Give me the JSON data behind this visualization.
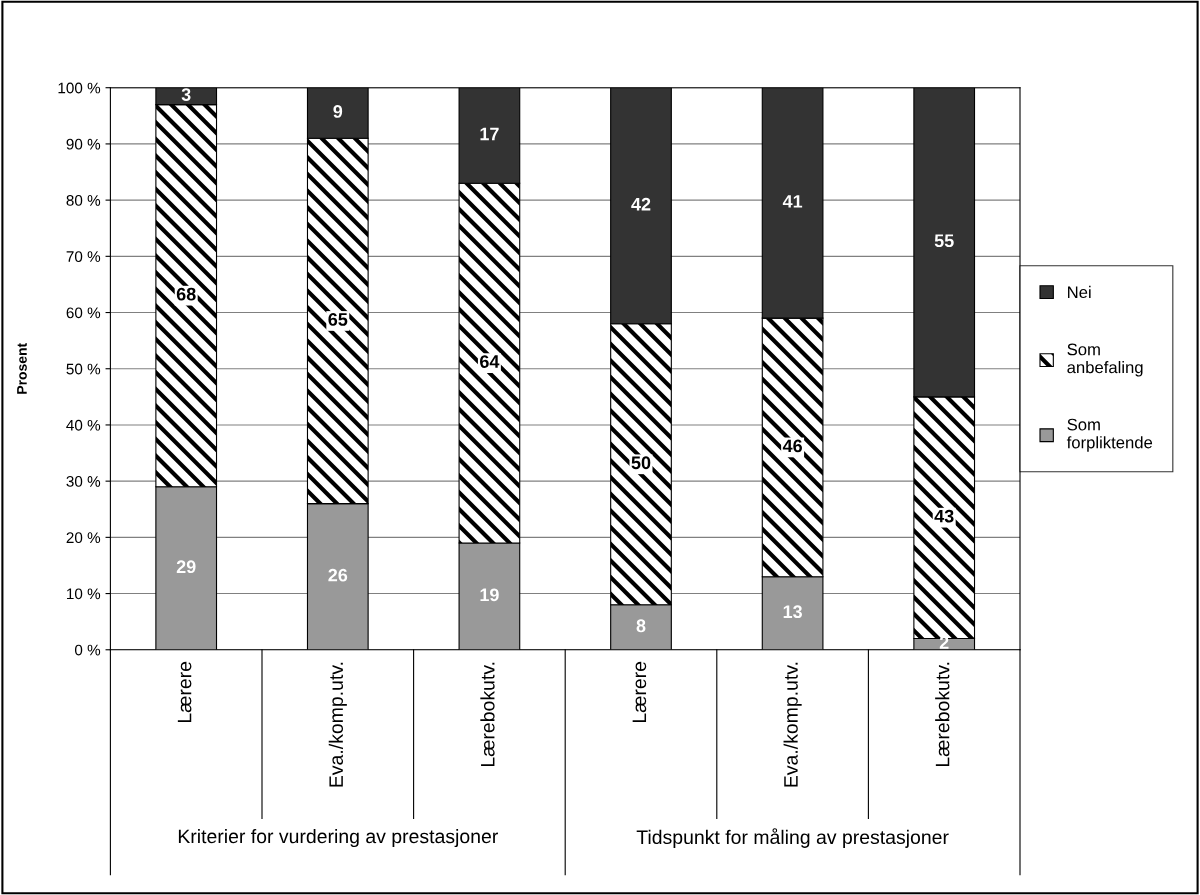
{
  "chart_data": {
    "type": "bar",
    "stacked": true,
    "ylabel": "Prosent",
    "categories": [
      "Lærere",
      "Eva./komp.utv.",
      "Lærebokutv.",
      "Lærere",
      "Eva./komp.utv.",
      "Lærebokutv."
    ],
    "series": [
      {
        "name": "Som forpliktende",
        "color": "#999999",
        "values": [
          29,
          26,
          19,
          8,
          13,
          2
        ]
      },
      {
        "name": "Som anbefaling",
        "color": "#000000",
        "values": [
          68,
          65,
          64,
          50,
          46,
          43
        ]
      },
      {
        "name": "Nei",
        "color": "#333333",
        "values": [
          3,
          9,
          17,
          42,
          41,
          55
        ]
      }
    ],
    "ylim": [
      0,
      100
    ],
    "yticks": [
      {
        "value": 0,
        "label": "0 %"
      },
      {
        "value": 10,
        "label": "10 %"
      },
      {
        "value": 20,
        "label": "20 %"
      },
      {
        "value": 30,
        "label": "30 %"
      },
      {
        "value": 40,
        "label": "40 %"
      },
      {
        "value": 50,
        "label": "50 %"
      },
      {
        "value": 60,
        "label": "60 %"
      },
      {
        "value": 70,
        "label": "70 %"
      },
      {
        "value": 80,
        "label": "80 %"
      },
      {
        "value": 90,
        "label": "90 %"
      },
      {
        "value": 100,
        "label": "100 %"
      }
    ],
    "grid": "y",
    "legend": "right",
    "data_labels": true,
    "annotations": [
      "Kriterier for vurdering av prestasjoner",
      "Tidspunkt for måling av prestasjoner"
    ]
  }
}
